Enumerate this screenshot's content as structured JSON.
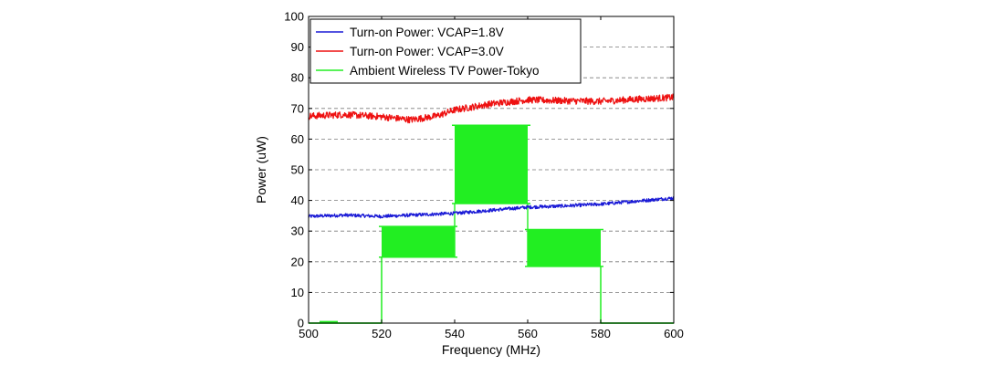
{
  "chart_data": {
    "type": "line",
    "title": "",
    "xlabel": "Frequency (MHz)",
    "ylabel": "Power (uW)",
    "xlim": [
      500,
      600
    ],
    "ylim": [
      0,
      100
    ],
    "xticks": [
      500,
      520,
      540,
      560,
      580,
      600
    ],
    "yticks": [
      0,
      10,
      20,
      30,
      40,
      50,
      60,
      70,
      80,
      90,
      100
    ],
    "grid": "dashed-horizontal",
    "legend_position": "top-left",
    "series": [
      {
        "name": "Turn-on Power: VCAP=1.8V",
        "color": "#1a1ad6",
        "style": "noisy-line",
        "x": [
          500,
          510,
          520,
          530,
          540,
          550,
          560,
          570,
          580,
          590,
          600
        ],
        "y": [
          34.8,
          35.2,
          34.8,
          35.3,
          35.8,
          36.8,
          37.8,
          38.2,
          38.8,
          39.8,
          40.8
        ]
      },
      {
        "name": "Turn-on Power: VCAP=3.0V",
        "color": "#ee1111",
        "style": "noisy-line",
        "x": [
          500,
          510,
          520,
          528,
          535,
          540,
          550,
          560,
          570,
          580,
          590,
          600
        ],
        "y": [
          67.5,
          68,
          67.3,
          66.3,
          67.5,
          69.5,
          71.5,
          72.8,
          72.5,
          72.3,
          73,
          73.6
        ]
      },
      {
        "name": "Ambient Wireless TV Power-Tokyo",
        "color": "#22ee22",
        "style": "band",
        "segments": [
          {
            "x_start": 500,
            "x_end": 520,
            "low": 0,
            "high": 0
          },
          {
            "x_start": 520,
            "x_end": 540,
            "low": 21.5,
            "high": 31.5
          },
          {
            "x_start": 540,
            "x_end": 560,
            "low": 39,
            "high": 64.5
          },
          {
            "x_start": 560,
            "x_end": 580,
            "low": 18.5,
            "high": 30.5
          },
          {
            "x_start": 580,
            "x_end": 600,
            "low": 0,
            "high": 0
          }
        ]
      }
    ]
  }
}
